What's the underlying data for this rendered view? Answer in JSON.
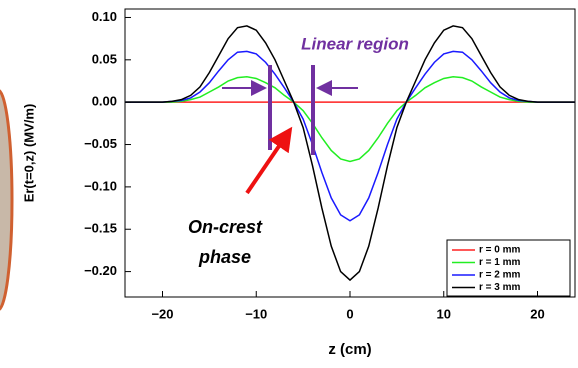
{
  "chart_data": {
    "type": "line",
    "y_label": "Er(t=0,z) (MV/m)",
    "x_label": "z (cm)",
    "annotations": [
      "Linear region",
      "On-crest",
      "phase"
    ],
    "x": [
      -24,
      -23,
      -22,
      -21,
      -20,
      -19,
      -18,
      -17,
      -16,
      -15,
      -14,
      -13,
      -12,
      -11,
      -10,
      -9,
      -8,
      -7,
      -6,
      -5,
      -4,
      -3,
      -2,
      -1,
      0,
      1,
      2,
      3,
      4,
      5,
      6,
      7,
      8,
      9,
      10,
      11,
      12,
      13,
      14,
      15,
      16,
      17,
      18,
      19,
      20,
      21,
      22,
      23,
      24
    ],
    "xlim": [
      -24,
      24
    ],
    "xticks": [
      {
        "value": -20,
        "label": "−20"
      },
      {
        "value": -10,
        "label": "−10"
      },
      0,
      10,
      20
    ],
    "ylim": [
      -0.23,
      0.11
    ],
    "yticks": [
      {
        "value": 0.1,
        "label": "0.10"
      },
      {
        "value": 0.05,
        "label": "0.05"
      },
      {
        "value": 0,
        "label": "0.00"
      },
      {
        "value": -0.05,
        "label": "−0.05"
      },
      {
        "value": -0.1,
        "label": "−0.10"
      },
      {
        "value": -0.15,
        "label": "−0.15"
      },
      {
        "value": -0.2,
        "label": "−0.20"
      }
    ],
    "grid": false,
    "legend": "lower right",
    "series": [
      {
        "name": "r = 0 mm",
        "color": "#ff2020",
        "values": [
          0,
          0,
          0,
          0,
          0,
          0,
          0,
          0,
          0,
          0,
          0,
          0,
          0,
          0,
          0,
          0,
          0,
          0,
          0,
          0,
          0,
          0,
          0,
          0,
          0,
          0,
          0,
          0,
          0,
          0,
          0,
          0,
          0,
          0,
          0,
          0,
          0,
          0,
          0,
          0,
          0,
          0,
          0,
          0,
          0,
          0,
          0,
          0,
          0
        ]
      },
      {
        "name": "r = 1 mm",
        "color": "#22ee22",
        "values": [
          0,
          0,
          0,
          0,
          0,
          0,
          0.001,
          0.003,
          0.006,
          0.012,
          0.018,
          0.025,
          0.029,
          0.03,
          0.028,
          0.023,
          0.017,
          0.008,
          0,
          -0.01,
          -0.025,
          -0.042,
          -0.057,
          -0.067,
          -0.07,
          -0.067,
          -0.057,
          -0.042,
          -0.025,
          -0.01,
          0,
          0.008,
          0.017,
          0.023,
          0.028,
          0.03,
          0.029,
          0.025,
          0.018,
          0.012,
          0.006,
          0.003,
          0.001,
          0,
          0,
          0,
          0,
          0,
          0
        ]
      },
      {
        "name": "r = 2 mm",
        "color": "#1a1aff",
        "values": [
          0,
          0,
          0,
          0,
          0,
          0.001,
          0.002,
          0.005,
          0.012,
          0.023,
          0.037,
          0.05,
          0.059,
          0.06,
          0.057,
          0.047,
          0.033,
          0.017,
          0,
          -0.02,
          -0.05,
          -0.083,
          -0.113,
          -0.133,
          -0.14,
          -0.133,
          -0.113,
          -0.083,
          -0.05,
          -0.02,
          0,
          0.017,
          0.033,
          0.047,
          0.057,
          0.06,
          0.059,
          0.05,
          0.037,
          0.023,
          0.012,
          0.005,
          0.002,
          0.001,
          0,
          0,
          0,
          0,
          0
        ]
      },
      {
        "name": "r = 3 mm",
        "color": "#000000",
        "values": [
          0,
          0,
          0,
          0,
          0,
          0.001,
          0.003,
          0.008,
          0.018,
          0.035,
          0.055,
          0.075,
          0.088,
          0.09,
          0.085,
          0.07,
          0.05,
          0.025,
          0,
          -0.03,
          -0.075,
          -0.125,
          -0.17,
          -0.2,
          -0.21,
          -0.2,
          -0.17,
          -0.125,
          -0.075,
          -0.03,
          0,
          0.025,
          0.05,
          0.07,
          0.085,
          0.09,
          0.088,
          0.075,
          0.055,
          0.035,
          0.018,
          0.008,
          0.003,
          0.001,
          0,
          0,
          0,
          0,
          0
        ]
      }
    ]
  }
}
